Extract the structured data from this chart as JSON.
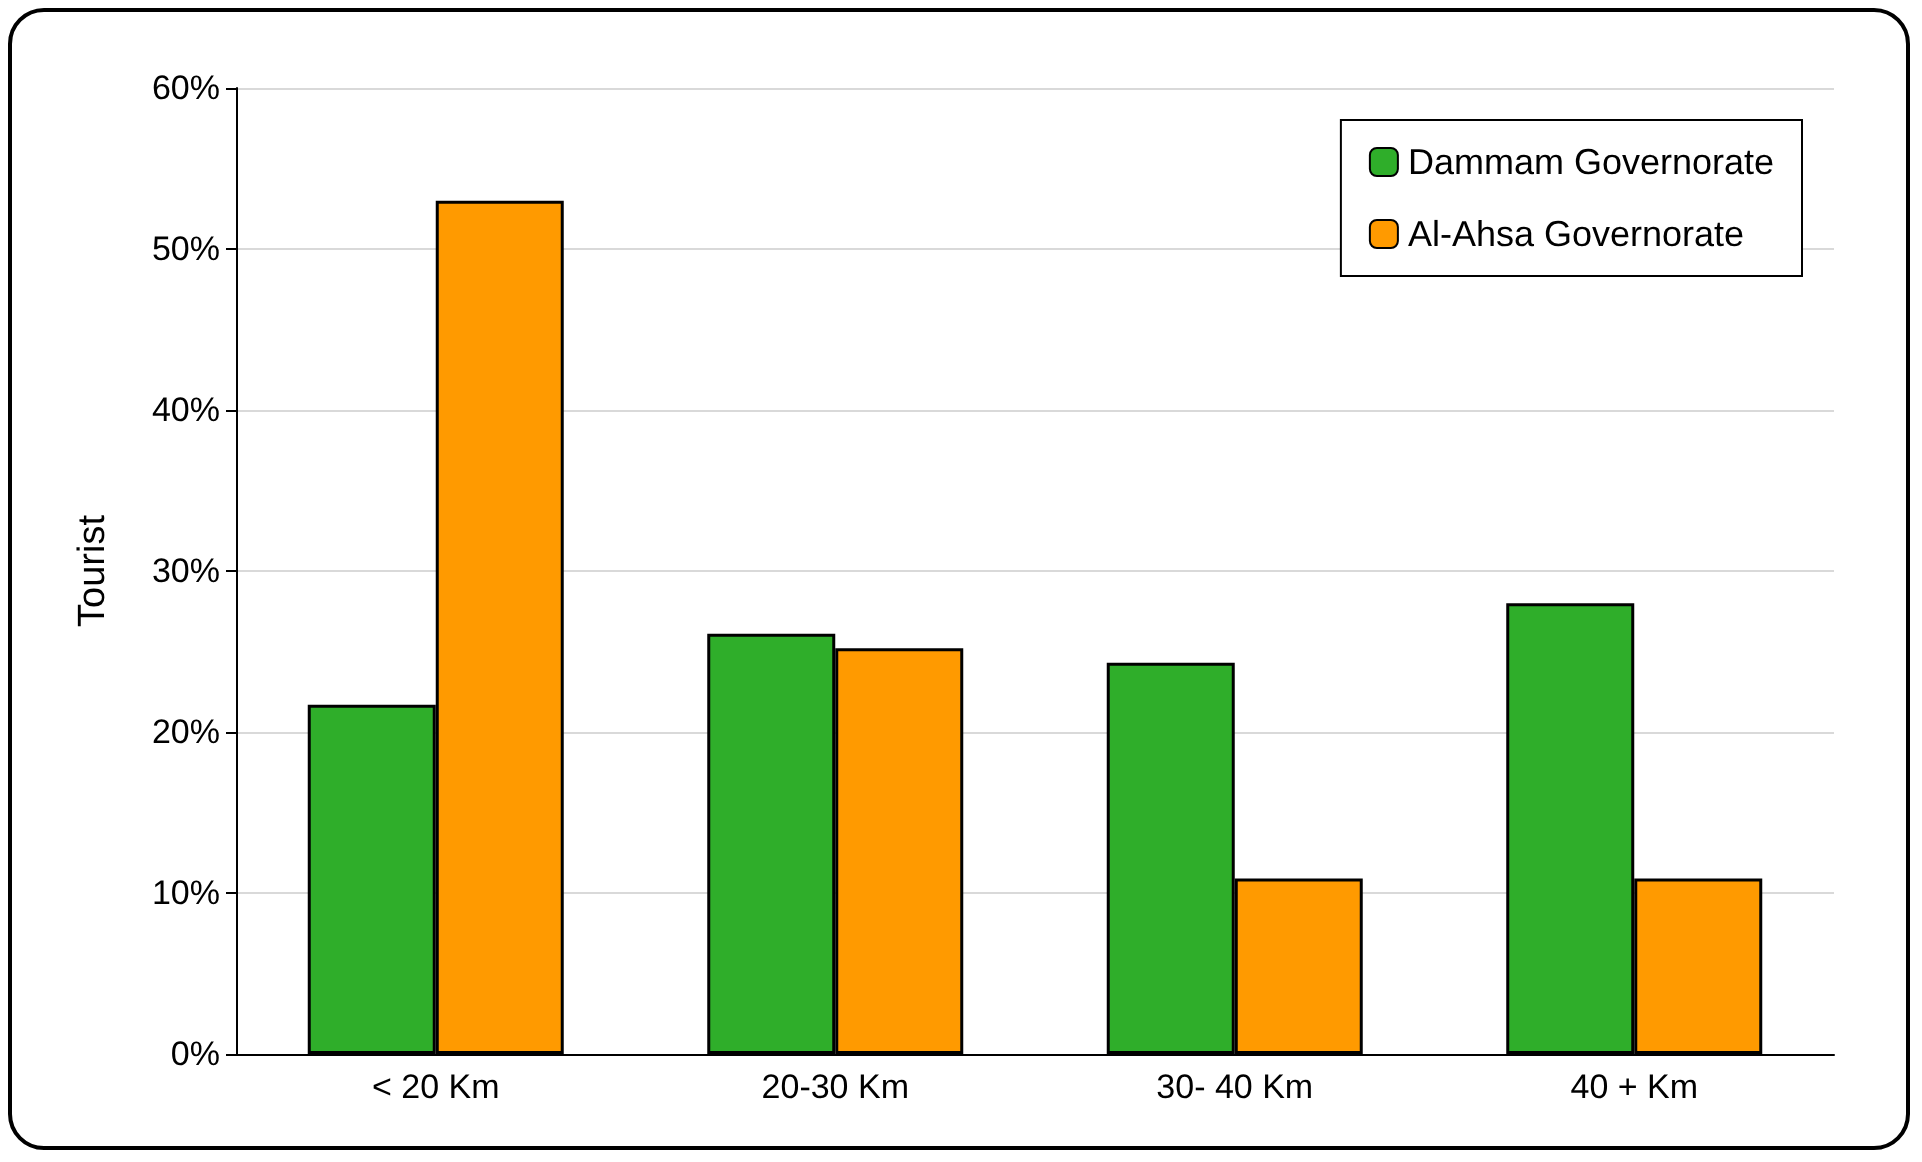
{
  "chart_data": {
    "type": "bar",
    "ylabel": "Tourist",
    "categories": [
      "< 20 Km",
      "20-30 Km",
      "30- 40 Km",
      "40 + Km"
    ],
    "series": [
      {
        "name": "Dammam Governorate",
        "color": "#2fae2a",
        "values": [
          21.7,
          26.1,
          24.3,
          28
        ]
      },
      {
        "name": "Al-Ahsa Governorate",
        "color": "#ff9a00",
        "values": [
          53,
          25.2,
          10.9,
          10.9
        ]
      }
    ],
    "ylim": [
      0,
      60
    ],
    "yticks": [
      {
        "value": 0,
        "label": "0%"
      },
      {
        "value": 10,
        "label": "10%"
      },
      {
        "value": 20,
        "label": "20%"
      },
      {
        "value": 30,
        "label": "30%"
      },
      {
        "value": 40,
        "label": "40%"
      },
      {
        "value": 50,
        "label": "50%"
      },
      {
        "value": 60,
        "label": "60%"
      }
    ],
    "grid": "y",
    "legend": "top right"
  }
}
